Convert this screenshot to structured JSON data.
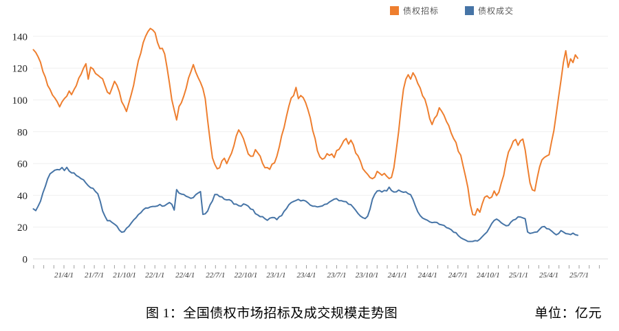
{
  "legend": {
    "items": [
      {
        "label": "债权招标",
        "color": "#EE7E2E"
      },
      {
        "label": "债权成交",
        "color": "#4674A6"
      }
    ]
  },
  "caption": {
    "title": "图 1：全国债权市场招标及成交规模走势图",
    "unit": "单位：亿元"
  },
  "chart_data": {
    "type": "line",
    "title": "全国债权市场招标及成交规模走势图",
    "unit": "亿元",
    "frequency": "weekly",
    "x_range": [
      "2021/1/1",
      "2025/8"
    ],
    "grid": "horizontal-only",
    "legend_position": "top",
    "ylim": [
      0,
      148
    ],
    "y_ticks": [
      0,
      20,
      40,
      60,
      80,
      100,
      120,
      140
    ],
    "x_tick_labels": [
      "21/4/1",
      "21/7/1",
      "21/10/1",
      "22/1/1",
      "22/4/1",
      "22/7/1",
      "22/10/1",
      "23/1/1",
      "23/4/1",
      "23/7/1",
      "23/10/1",
      "24/1/1",
      "24/4/1",
      "24/7/1",
      "24/10/1",
      "25/1/1",
      "25/4/1",
      "25/7/1"
    ],
    "series": [
      {
        "name": "债权招标",
        "color": "#EE7E2E",
        "values": [
          130.5,
          131,
          127,
          124,
          118,
          114,
          110,
          107,
          103,
          100,
          98,
          96.5,
          97.5,
          100,
          102.5,
          104.5,
          103.5,
          106,
          109.5,
          113,
          116,
          119.5,
          123,
          114,
          121,
          119.5,
          118,
          116.5,
          114.5,
          112,
          108.5,
          105.5,
          104,
          108.5,
          111.5,
          108,
          104,
          99,
          95.5,
          92.5,
          97,
          103.5,
          110,
          117,
          124,
          130,
          136,
          141,
          144,
          145.5,
          145,
          141.5,
          136,
          132.5,
          131.5,
          129,
          121,
          111,
          101,
          94.5,
          88.5,
          95,
          99.5,
          103.5,
          108.5,
          113.5,
          118.5,
          122.5,
          118,
          114.5,
          111,
          108,
          102,
          88,
          74.5,
          64.5,
          59,
          57.5,
          58.5,
          61,
          63.5,
          61,
          64,
          67.5,
          71.5,
          77.5,
          81.5,
          79,
          74.5,
          70,
          67,
          64.5,
          64,
          68,
          66,
          63.5,
          61,
          58.5,
          57.5,
          57,
          58.5,
          61.5,
          65.5,
          70.5,
          76.5,
          83,
          89.5,
          95.5,
          100,
          103.5,
          107.5,
          102,
          104,
          101.5,
          98.5,
          94,
          87.5,
          81,
          74.5,
          68.5,
          63.5,
          61.5,
          64.5,
          67.5,
          64.5,
          66.5,
          64.5,
          67,
          69.5,
          71.5,
          73.5,
          75,
          73.5,
          74.5,
          71,
          67.5,
          64,
          60.5,
          57.5,
          55,
          52.5,
          50.5,
          49.5,
          52.5,
          54.5,
          53,
          51.5,
          53.5,
          52,
          49.5,
          52.5,
          58.5,
          68,
          80,
          93.5,
          105.5,
          113,
          116.5,
          113.5,
          116,
          114.5,
          111.5,
          107.5,
          103.5,
          100.5,
          94.5,
          87.5,
          84.5,
          88,
          91.5,
          94.5,
          92,
          89.5,
          86.5,
          83.5,
          80,
          76,
          72,
          68,
          64,
          58.5,
          51.5,
          44,
          35.5,
          29,
          26.5,
          31,
          29.5,
          35.5,
          38.5,
          40.5,
          38,
          40,
          41.5,
          39.5,
          42.5,
          47,
          53.5,
          61,
          67,
          71,
          74,
          75.5,
          70.5,
          74,
          76,
          67.5,
          56.5,
          48,
          44,
          43.5,
          50,
          57,
          62,
          64.5,
          63.5,
          66.5,
          72.5,
          81,
          91,
          102,
          113,
          123,
          131,
          120.5,
          127,
          123.5,
          127.5,
          126.5
        ]
      },
      {
        "name": "债权成交",
        "color": "#4674A6",
        "values": [
          32,
          30.5,
          33,
          36.5,
          41,
          46,
          50,
          53,
          54.5,
          55.5,
          56,
          56.5,
          57.5,
          56,
          57,
          55.5,
          54.5,
          53.5,
          52.5,
          51.5,
          50.5,
          49.5,
          48,
          46.5,
          45,
          44,
          42.5,
          41,
          36.5,
          30.5,
          26.5,
          24.5,
          24,
          23,
          22,
          21,
          18.5,
          17.2,
          17.5,
          19,
          21,
          23,
          24.5,
          26,
          27.5,
          29,
          30.5,
          31.5,
          32.5,
          33,
          33.5,
          33,
          33.5,
          34,
          33.5,
          34,
          34.5,
          35.5,
          34.5,
          31,
          43,
          42,
          41,
          40,
          39.5,
          38.5,
          38,
          39,
          40,
          41.5,
          42,
          28.5,
          28,
          30,
          33.5,
          37,
          40.5,
          40,
          39.5,
          38.5,
          38,
          37.5,
          37,
          36.5,
          35,
          34,
          33.5,
          33.5,
          34,
          33.5,
          33,
          32,
          30.5,
          28.5,
          27.5,
          26.5,
          26,
          25.5,
          24.7,
          25.5,
          26,
          25.5,
          25,
          26,
          27.5,
          29.5,
          31.5,
          33.5,
          35,
          36,
          37,
          37.5,
          37,
          36.5,
          36,
          35,
          34,
          33.5,
          33,
          32.5,
          33,
          33.5,
          34,
          34.5,
          35.5,
          36.5,
          37,
          37.5,
          37,
          36.5,
          36,
          35.5,
          35,
          34,
          32.5,
          30.5,
          28.5,
          27,
          26,
          25.5,
          27,
          31.5,
          37.5,
          41,
          42.5,
          42.5,
          42,
          42.5,
          43,
          45.5,
          42.5,
          42,
          42.5,
          43,
          42.5,
          42,
          42,
          41.5,
          40,
          37,
          33,
          29.5,
          27,
          25.5,
          24.5,
          24,
          23.5,
          23,
          23,
          22.5,
          22,
          21.5,
          21,
          20,
          19,
          18,
          17,
          16,
          15,
          13.5,
          12.5,
          11.5,
          11,
          10.5,
          10.5,
          11,
          11.5,
          12.5,
          13.5,
          15,
          17.5,
          20,
          22.5,
          24,
          25,
          24.5,
          23,
          21.5,
          20.5,
          21.5,
          23,
          24.5,
          25.5,
          26,
          26.5,
          25.5,
          25.5,
          16.5,
          16,
          16.5,
          17,
          17.5,
          18.5,
          19.5,
          20,
          19.5,
          18.5,
          17.5,
          16,
          15.5,
          16.5,
          17.5,
          16.5,
          16,
          15.5,
          15,
          16,
          15.5,
          15
        ]
      }
    ]
  }
}
